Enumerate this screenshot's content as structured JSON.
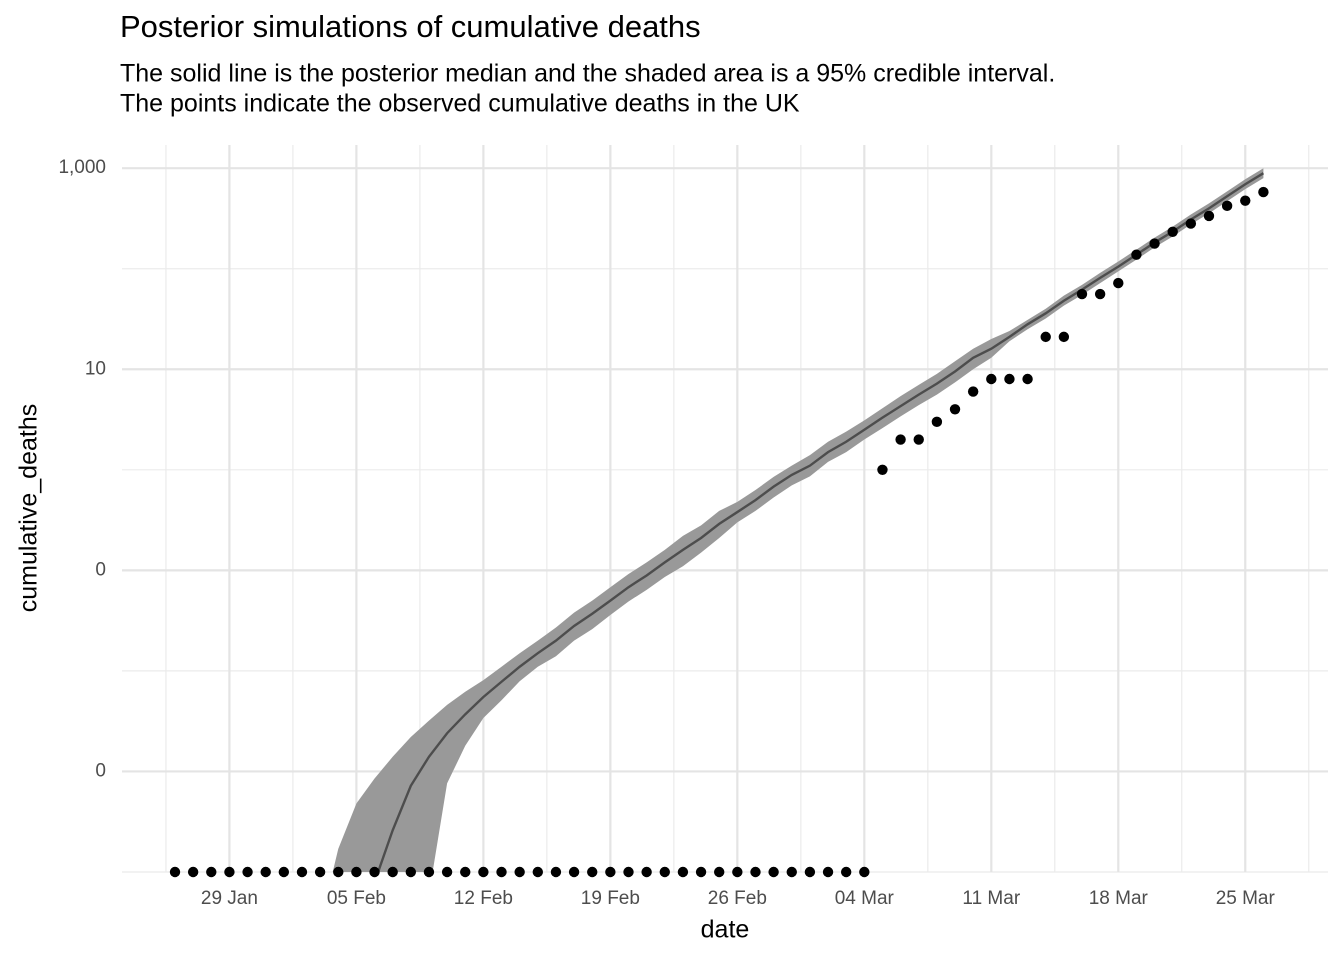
{
  "chart_data": {
    "type": "line",
    "title": "Posterior simulations of cumulative deaths",
    "subtitle": [
      "The solid line is the posterior median and the shaded area is a 95% credible interval.",
      "The points indicate the observed cumulative deaths in the UK"
    ],
    "x_label": "date",
    "y_label": "cumulative_deaths",
    "categories": [
      "26 Jan",
      "27 Jan",
      "28 Jan",
      "29 Jan",
      "30 Jan",
      "31 Jan",
      "01 Feb",
      "02 Feb",
      "03 Feb",
      "04 Feb",
      "05 Feb",
      "06 Feb",
      "07 Feb",
      "08 Feb",
      "09 Feb",
      "10 Feb",
      "11 Feb",
      "12 Feb",
      "13 Feb",
      "14 Feb",
      "15 Feb",
      "16 Feb",
      "17 Feb",
      "18 Feb",
      "19 Feb",
      "20 Feb",
      "21 Feb",
      "22 Feb",
      "23 Feb",
      "24 Feb",
      "25 Feb",
      "26 Feb",
      "27 Feb",
      "28 Feb",
      "29 Feb",
      "01 Mar",
      "02 Mar",
      "03 Mar",
      "04 Mar",
      "05 Mar",
      "06 Mar",
      "07 Mar",
      "08 Mar",
      "09 Mar",
      "10 Mar",
      "11 Mar",
      "12 Mar",
      "13 Mar",
      "14 Mar",
      "15 Mar",
      "16 Mar",
      "17 Mar",
      "18 Mar",
      "19 Mar",
      "20 Mar",
      "21 Mar",
      "22 Mar",
      "23 Mar",
      "24 Mar",
      "25 Mar",
      "26 Mar"
    ],
    "xticks": [
      "29 Jan",
      "05 Feb",
      "12 Feb",
      "19 Feb",
      "26 Feb",
      "04 Mar",
      "11 Mar",
      "18 Mar",
      "25 Mar"
    ],
    "y_scale": "log",
    "ylim": [
      0.0001,
      1700
    ],
    "yticks": [
      {
        "value": 1000,
        "label": "1,000"
      },
      10,
      {
        "value": 0.1,
        "label": "0"
      },
      {
        "value": 0.001,
        "label": "0"
      }
    ],
    "y_minor_grid": [
      100,
      1,
      0.01,
      0.0001
    ],
    "grid": true,
    "interval": {
      "color": "#999999",
      "upper": [
        null,
        null,
        null,
        null,
        null,
        null,
        null,
        null,
        3e-05,
        0.00017,
        0.00048,
        0.00085,
        0.0014,
        0.0022,
        0.0032,
        0.0046,
        0.0062,
        0.0081,
        0.011,
        0.015,
        0.02,
        0.027,
        0.038,
        0.05,
        0.068,
        0.092,
        0.12,
        0.16,
        0.22,
        0.28,
        0.39,
        0.48,
        0.63,
        0.85,
        1.1,
        1.4,
        1.9,
        2.4,
        3.1,
        4.1,
        5.4,
        7,
        9,
        12,
        16,
        20,
        24,
        31,
        40,
        54,
        69,
        91,
        118,
        155,
        204,
        262,
        346,
        446,
        588,
        775,
        998
      ],
      "lower": [
        null,
        null,
        null,
        null,
        null,
        null,
        null,
        null,
        null,
        null,
        null,
        null,
        null,
        null,
        6e-05,
        0.00076,
        0.0018,
        0.0034,
        0.0051,
        0.0079,
        0.011,
        0.014,
        0.02,
        0.026,
        0.036,
        0.049,
        0.064,
        0.086,
        0.11,
        0.15,
        0.21,
        0.3,
        0.39,
        0.53,
        0.7,
        0.86,
        1.2,
        1.5,
        2,
        2.6,
        3.4,
        4.4,
        5.6,
        7.4,
        10,
        13,
        19,
        25,
        32,
        43,
        55,
        72,
        94,
        123,
        163,
        209,
        276,
        355,
        469,
        618,
        796
      ]
    },
    "median": {
      "color": "#4d4d4d",
      "values": [
        null,
        null,
        null,
        null,
        null,
        null,
        null,
        null,
        null,
        null,
        null,
        7.9e-05,
        0.00026,
        0.00072,
        0.0014,
        0.0024,
        0.0037,
        0.0055,
        0.0078,
        0.011,
        0.015,
        0.02,
        0.028,
        0.037,
        0.05,
        0.068,
        0.089,
        0.12,
        0.16,
        0.21,
        0.29,
        0.38,
        0.5,
        0.68,
        0.89,
        1.1,
        1.5,
        1.9,
        2.5,
        3.3,
        4.3,
        5.6,
        7.2,
        9.5,
        13,
        16,
        21,
        28,
        36,
        48,
        62,
        81,
        105,
        138,
        182,
        234,
        309,
        398,
        525,
        692,
        891
      ]
    },
    "observed": {
      "color": "#000000",
      "values": [
        0,
        0,
        0,
        0,
        0,
        0,
        0,
        0,
        0,
        0,
        0,
        0,
        0,
        0,
        0,
        0,
        0,
        0,
        0,
        0,
        0,
        0,
        0,
        0,
        0,
        0,
        0,
        0,
        0,
        0,
        0,
        0,
        0,
        0,
        0,
        0,
        0,
        0,
        0,
        1,
        2,
        2,
        3,
        4,
        6,
        8,
        8,
        8,
        21,
        21,
        56,
        56,
        72,
        138,
        178,
        233,
        281,
        335,
        422,
        475,
        578
      ]
    }
  }
}
